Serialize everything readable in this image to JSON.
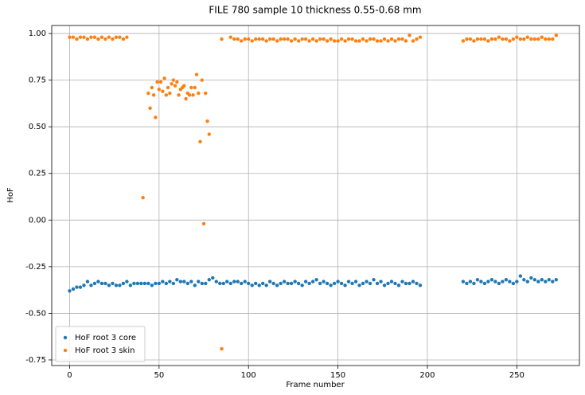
{
  "chart_data": {
    "type": "scatter",
    "title": "FILE 780 sample 10 thickness 0.55-0.68 mm",
    "x_label": "Frame number",
    "y_label": "HoF",
    "xlim": [
      -10,
      285
    ],
    "ylim": [
      -0.78,
      1.043
    ],
    "xticks": [
      0,
      50,
      100,
      150,
      200,
      250
    ],
    "yticks": [
      -0.75,
      {
        "value": -0.5,
        "label": "-0.50"
      },
      -0.25,
      {
        "value": 0,
        "label": "0.00"
      },
      0.25,
      {
        "value": 0.5,
        "label": "0.50"
      },
      0.75,
      {
        "value": 1,
        "label": "1.00"
      }
    ],
    "grid": true,
    "legend": "lower left",
    "series": [
      {
        "name": "HoF root 3 core",
        "color": "#1f77b4",
        "x": [
          0,
          2,
          4,
          6,
          8,
          10,
          12,
          14,
          16,
          18,
          20,
          22,
          24,
          26,
          28,
          30,
          32,
          34,
          36,
          38,
          40,
          42,
          44,
          46,
          48,
          50,
          52,
          54,
          56,
          58,
          60,
          62,
          64,
          66,
          68,
          70,
          72,
          74,
          76,
          78,
          80,
          82,
          84,
          86,
          88,
          90,
          92,
          94,
          96,
          98,
          100,
          102,
          104,
          106,
          108,
          110,
          112,
          114,
          116,
          118,
          120,
          122,
          124,
          126,
          128,
          130,
          132,
          134,
          136,
          138,
          140,
          142,
          144,
          146,
          148,
          150,
          152,
          154,
          156,
          158,
          160,
          162,
          164,
          166,
          168,
          170,
          172,
          174,
          176,
          178,
          180,
          182,
          184,
          186,
          188,
          190,
          192,
          194,
          196,
          220,
          222,
          224,
          226,
          228,
          230,
          232,
          234,
          236,
          238,
          240,
          242,
          244,
          246,
          248,
          250,
          252,
          254,
          256,
          258,
          260,
          262,
          264,
          266,
          268,
          270,
          272
        ],
        "values": [
          -0.38,
          -0.37,
          -0.36,
          -0.36,
          -0.35,
          -0.33,
          -0.35,
          -0.34,
          -0.33,
          -0.34,
          -0.34,
          -0.35,
          -0.34,
          -0.35,
          -0.35,
          -0.34,
          -0.33,
          -0.35,
          -0.34,
          -0.34,
          -0.34,
          -0.34,
          -0.34,
          -0.35,
          -0.34,
          -0.34,
          -0.33,
          -0.34,
          -0.33,
          -0.34,
          -0.32,
          -0.33,
          -0.33,
          -0.34,
          -0.33,
          -0.35,
          -0.33,
          -0.34,
          -0.34,
          -0.32,
          -0.31,
          -0.33,
          -0.34,
          -0.34,
          -0.33,
          -0.34,
          -0.33,
          -0.33,
          -0.34,
          -0.33,
          -0.34,
          -0.35,
          -0.34,
          -0.35,
          -0.34,
          -0.35,
          -0.33,
          -0.34,
          -0.35,
          -0.34,
          -0.33,
          -0.34,
          -0.34,
          -0.33,
          -0.34,
          -0.35,
          -0.33,
          -0.34,
          -0.33,
          -0.32,
          -0.34,
          -0.33,
          -0.34,
          -0.35,
          -0.34,
          -0.33,
          -0.34,
          -0.35,
          -0.33,
          -0.34,
          -0.33,
          -0.35,
          -0.34,
          -0.33,
          -0.34,
          -0.32,
          -0.34,
          -0.33,
          -0.35,
          -0.34,
          -0.33,
          -0.34,
          -0.35,
          -0.33,
          -0.34,
          -0.34,
          -0.33,
          -0.34,
          -0.35,
          -0.33,
          -0.34,
          -0.33,
          -0.34,
          -0.32,
          -0.33,
          -0.34,
          -0.33,
          -0.32,
          -0.33,
          -0.34,
          -0.33,
          -0.32,
          -0.33,
          -0.34,
          -0.33,
          -0.3,
          -0.32,
          -0.33,
          -0.31,
          -0.32,
          -0.33,
          -0.32,
          -0.33,
          -0.32,
          -0.33,
          -0.32
        ]
      },
      {
        "name": "HoF root 3 skin",
        "color": "#ff7f0e",
        "x": [
          0,
          2,
          4,
          6,
          8,
          10,
          12,
          14,
          16,
          18,
          20,
          22,
          24,
          26,
          28,
          30,
          32,
          41,
          44,
          45,
          46,
          47,
          48,
          49,
          50,
          51,
          52,
          53,
          54,
          55,
          56,
          57,
          58,
          59,
          60,
          61,
          62,
          63,
          64,
          65,
          66,
          67,
          68,
          69,
          70,
          71,
          72,
          73,
          74,
          75,
          76,
          77,
          78,
          85,
          85,
          90,
          92,
          94,
          96,
          98,
          100,
          102,
          104,
          106,
          108,
          110,
          112,
          114,
          116,
          118,
          120,
          122,
          124,
          126,
          128,
          130,
          132,
          134,
          136,
          138,
          140,
          142,
          144,
          146,
          148,
          150,
          152,
          154,
          156,
          158,
          160,
          162,
          164,
          166,
          168,
          170,
          172,
          174,
          176,
          178,
          180,
          182,
          184,
          186,
          188,
          190,
          192,
          194,
          196,
          220,
          222,
          224,
          226,
          228,
          230,
          232,
          234,
          236,
          238,
          240,
          242,
          244,
          246,
          248,
          250,
          252,
          254,
          256,
          258,
          260,
          262,
          264,
          266,
          268,
          270,
          272
        ],
        "values": [
          0.98,
          0.98,
          0.97,
          0.98,
          0.98,
          0.97,
          0.98,
          0.98,
          0.97,
          0.98,
          0.97,
          0.98,
          0.97,
          0.98,
          0.98,
          0.97,
          0.98,
          0.12,
          0.68,
          0.6,
          0.71,
          0.67,
          0.55,
          0.74,
          0.7,
          0.74,
          0.69,
          0.76,
          0.67,
          0.71,
          0.68,
          0.73,
          0.75,
          0.72,
          0.74,
          0.67,
          0.7,
          0.71,
          0.72,
          0.65,
          0.68,
          0.67,
          0.71,
          0.67,
          0.71,
          0.78,
          0.68,
          0.42,
          0.75,
          -0.02,
          0.68,
          0.53,
          0.46,
          0.97,
          -0.69,
          0.98,
          0.97,
          0.97,
          0.96,
          0.97,
          0.97,
          0.96,
          0.97,
          0.97,
          0.97,
          0.96,
          0.97,
          0.97,
          0.96,
          0.97,
          0.97,
          0.97,
          0.96,
          0.97,
          0.96,
          0.97,
          0.97,
          0.96,
          0.97,
          0.96,
          0.97,
          0.97,
          0.96,
          0.97,
          0.96,
          0.96,
          0.97,
          0.96,
          0.97,
          0.97,
          0.96,
          0.96,
          0.97,
          0.96,
          0.97,
          0.97,
          0.96,
          0.96,
          0.97,
          0.96,
          0.97,
          0.96,
          0.97,
          0.97,
          0.96,
          0.99,
          0.96,
          0.97,
          0.98,
          0.96,
          0.97,
          0.97,
          0.96,
          0.97,
          0.97,
          0.97,
          0.96,
          0.97,
          0.97,
          0.98,
          0.97,
          0.97,
          0.96,
          0.97,
          0.98,
          0.97,
          0.97,
          0.98,
          0.97,
          0.97,
          0.97,
          0.98,
          0.97,
          0.97,
          0.97,
          0.99
        ]
      }
    ]
  }
}
